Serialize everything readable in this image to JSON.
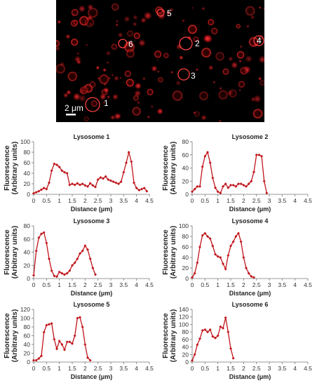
{
  "colors": {
    "series": "#c0161c",
    "background": "#000000",
    "axis": "#333333"
  },
  "micrograph": {
    "labels": [
      "1",
      "2",
      "3",
      "4",
      "5",
      "6"
    ],
    "scale_label": "2 μm"
  },
  "chart_data": [
    {
      "type": "line",
      "title": "Lysosome 1",
      "xlabel": "Distance (μm)",
      "ylabel": "Fluorescence (Arbitrary units)",
      "xlim": [
        0,
        4.5
      ],
      "ylim": [
        0,
        100
      ],
      "ystep": 20,
      "xticks": [
        "0",
        "0.5",
        "1",
        "1.5",
        "2",
        "2.5",
        "3",
        "3.5",
        "4",
        "4.5"
      ],
      "x": [
        0,
        0.1,
        0.2,
        0.3,
        0.4,
        0.5,
        0.6,
        0.7,
        0.8,
        0.9,
        1.0,
        1.1,
        1.2,
        1.3,
        1.4,
        1.5,
        1.6,
        1.7,
        1.8,
        1.9,
        2.0,
        2.1,
        2.2,
        2.3,
        2.4,
        2.5,
        2.6,
        2.7,
        2.8,
        2.9,
        3.0,
        3.1,
        3.2,
        3.3,
        3.4,
        3.5,
        3.6,
        3.7,
        3.8,
        3.9,
        4.0,
        4.1,
        4.2,
        4.3,
        4.4
      ],
      "y": [
        2,
        4,
        6,
        9,
        12,
        10,
        22,
        45,
        58,
        56,
        52,
        45,
        42,
        40,
        18,
        20,
        18,
        21,
        18,
        20,
        17,
        15,
        21,
        17,
        14,
        28,
        32,
        30,
        34,
        28,
        26,
        24,
        22,
        20,
        24,
        42,
        60,
        80,
        62,
        22,
        12,
        8,
        10,
        12,
        6
      ]
    },
    {
      "type": "line",
      "title": "Lysosome 2",
      "xlabel": "Distance (μm)",
      "ylabel": "Fluorescence (Arbitrary units)",
      "xlim": [
        0,
        4.5
      ],
      "ylim": [
        0,
        80
      ],
      "ystep": 20,
      "xticks": [
        "0",
        "0.5",
        "1",
        "1.5",
        "2",
        "2.5",
        "3",
        "3.5",
        "4",
        "4.5"
      ],
      "x": [
        0,
        0.1,
        0.2,
        0.3,
        0.4,
        0.5,
        0.6,
        0.7,
        0.8,
        0.9,
        1.0,
        1.1,
        1.2,
        1.3,
        1.4,
        1.5,
        1.6,
        1.7,
        1.8,
        1.9,
        2.0,
        2.1,
        2.2,
        2.3,
        2.4,
        2.5,
        2.6,
        2.7,
        2.8,
        2.9
      ],
      "y": [
        4,
        8,
        12,
        12,
        42,
        58,
        64,
        48,
        25,
        10,
        4,
        2,
        12,
        16,
        10,
        14,
        14,
        12,
        16,
        16,
        14,
        12,
        16,
        20,
        34,
        60,
        60,
        58,
        20,
        2
      ]
    },
    {
      "type": "line",
      "title": "Lysosome 3",
      "xlabel": "Distance (μm)",
      "ylabel": "Fluorescence (Arbitrary units)",
      "xlim": [
        0,
        4.5
      ],
      "ylim": [
        0,
        80
      ],
      "ystep": 20,
      "xticks": [
        "0",
        "0.5",
        "1",
        "1.5",
        "2",
        "2.5",
        "3",
        "3.5",
        "4",
        "4.5"
      ],
      "x": [
        0,
        0.1,
        0.2,
        0.3,
        0.4,
        0.5,
        0.6,
        0.7,
        0.8,
        0.9,
        1.0,
        1.1,
        1.2,
        1.3,
        1.4,
        1.5,
        1.6,
        1.7,
        1.8,
        1.9,
        2.0,
        2.1,
        2.2,
        2.3,
        2.4
      ],
      "y": [
        5,
        42,
        62,
        68,
        70,
        54,
        30,
        12,
        4,
        3,
        10,
        8,
        6,
        8,
        12,
        20,
        24,
        30,
        38,
        42,
        50,
        44,
        30,
        16,
        6
      ]
    },
    {
      "type": "line",
      "title": "Lysosome 4",
      "xlabel": "Distance (μm)",
      "ylabel": "Fluorescence (Arbitrary units)",
      "xlim": [
        0,
        4.5
      ],
      "ylim": [
        0,
        100
      ],
      "ystep": 20,
      "xticks": [
        "0",
        "0.5",
        "1",
        "1.5",
        "2",
        "2.5",
        "3",
        "3.5",
        "4",
        "4.5"
      ],
      "x": [
        0,
        0.1,
        0.2,
        0.3,
        0.4,
        0.5,
        0.6,
        0.7,
        0.8,
        0.9,
        1.0,
        1.1,
        1.2,
        1.3,
        1.4,
        1.5,
        1.6,
        1.7,
        1.8,
        1.9,
        2.0,
        2.1,
        2.2,
        2.3,
        2.4
      ],
      "y": [
        2,
        10,
        30,
        60,
        82,
        86,
        80,
        76,
        62,
        46,
        42,
        40,
        28,
        18,
        44,
        62,
        70,
        80,
        86,
        70,
        40,
        20,
        10,
        4,
        2
      ]
    },
    {
      "type": "line",
      "title": "Lysosome 5",
      "xlabel": "Distance (μm)",
      "ylabel": "Fluorescence (Arbitrary units)",
      "xlim": [
        0,
        4.5
      ],
      "ylim": [
        0,
        120
      ],
      "ystep": 20,
      "xticks": [
        "0",
        "0.5",
        "1",
        "1.5",
        "2",
        "2.5",
        "3",
        "3.5",
        "4",
        "4.5"
      ],
      "x": [
        0,
        0.1,
        0.2,
        0.3,
        0.4,
        0.5,
        0.6,
        0.7,
        0.8,
        0.9,
        1.0,
        1.1,
        1.2,
        1.3,
        1.4,
        1.5,
        1.6,
        1.7,
        1.8,
        1.9,
        2.0,
        2.1,
        2.2
      ],
      "y": [
        4,
        4,
        8,
        14,
        68,
        84,
        86,
        88,
        52,
        30,
        48,
        40,
        28,
        46,
        46,
        42,
        60,
        100,
        102,
        80,
        40,
        10,
        4
      ]
    },
    {
      "type": "line",
      "title": "Lysosome 6",
      "xlabel": "Distance (μm)",
      "ylabel": "Fluorescence (Arbitrary units)",
      "xlim": [
        0,
        4.5
      ],
      "ylim": [
        0,
        140
      ],
      "ystep": 20,
      "xticks": [
        "0",
        "0.5",
        "1",
        "1.5",
        "2",
        "2.5",
        "3",
        "3.5",
        "4",
        "4.5"
      ],
      "x": [
        0,
        0.1,
        0.2,
        0.3,
        0.4,
        0.5,
        0.6,
        0.7,
        0.8,
        0.9,
        1.0,
        1.1,
        1.2,
        1.3,
        1.4,
        1.5,
        1.6
      ],
      "y": [
        4,
        20,
        46,
        62,
        84,
        86,
        80,
        86,
        68,
        64,
        70,
        94,
        90,
        118,
        80,
        36,
        10
      ]
    }
  ]
}
